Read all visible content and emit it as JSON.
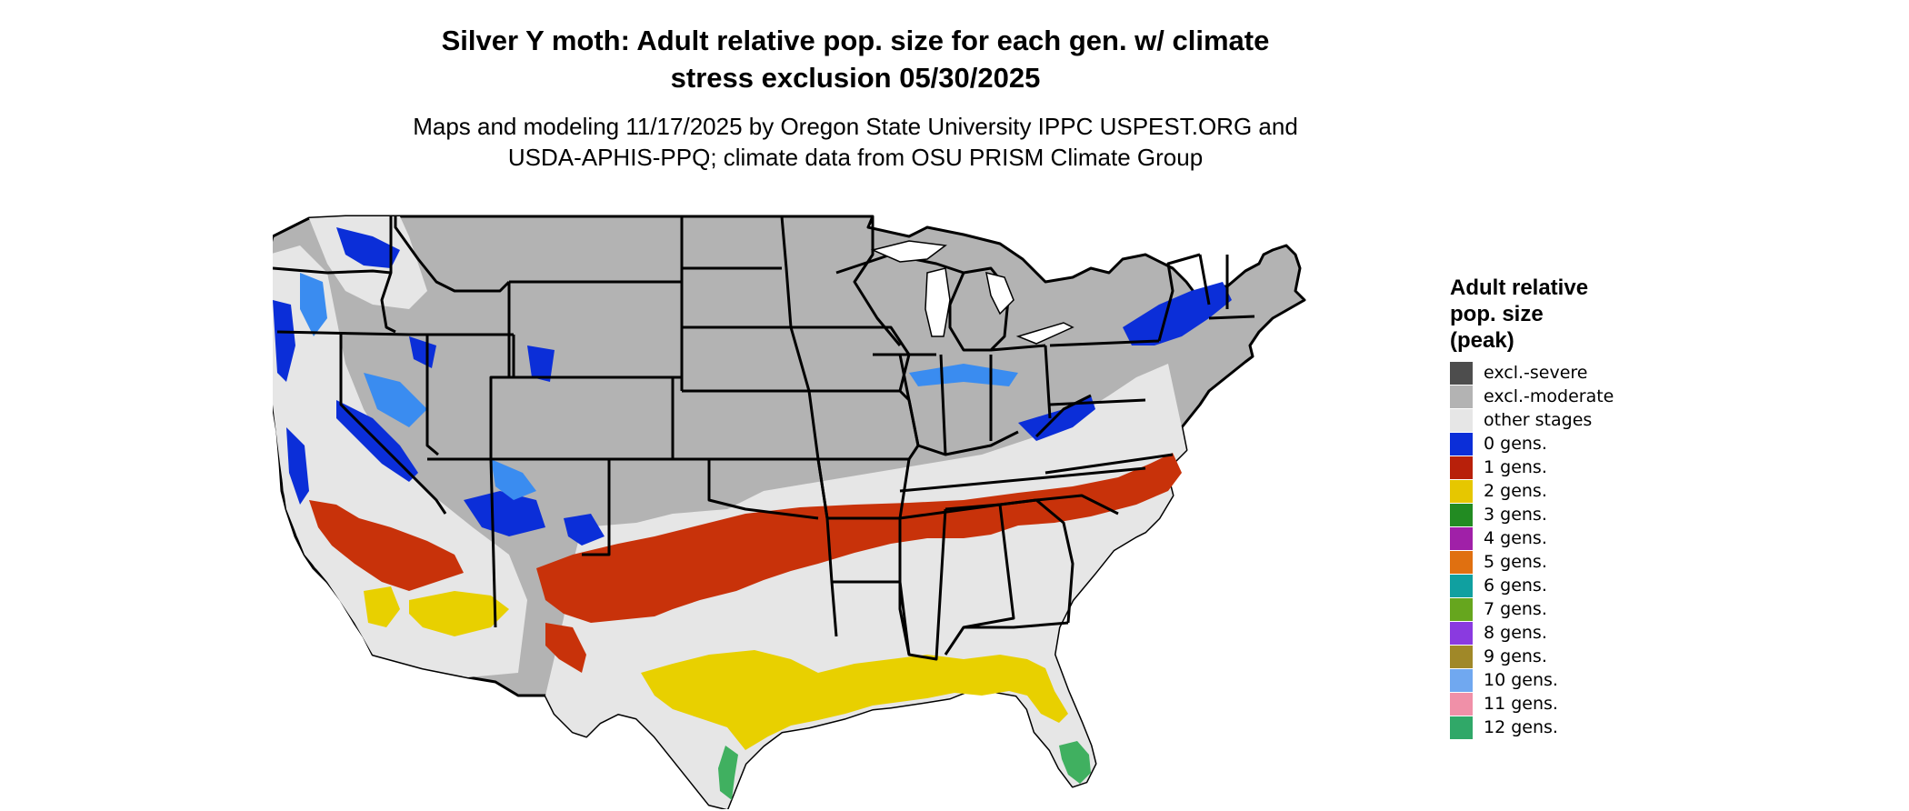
{
  "title": {
    "line1": "Silver Y moth: Adult relative pop. size for each gen. w/ climate",
    "line2": "stress exclusion 05/30/2025"
  },
  "subtitle": {
    "line1": "Maps and modeling 11/17/2025 by Oregon State University IPPC USPEST.ORG and",
    "line2": "USDA-APHIS-PPQ; climate data from OSU PRISM Climate Group"
  },
  "legend": {
    "title_line1": "Adult relative",
    "title_line2": "pop. size",
    "title_line3": "(peak)",
    "items": [
      {
        "label": "excl.-severe",
        "color": "#4d4d4d"
      },
      {
        "label": "excl.-moderate",
        "color": "#b3b3b3"
      },
      {
        "label": "other stages",
        "color": "#e6e6e6"
      },
      {
        "label": "0 gens.",
        "color": "#0b2ed8"
      },
      {
        "label": "1 gens.",
        "color": "#b8200a"
      },
      {
        "label": "2 gens.",
        "color": "#e6c700"
      },
      {
        "label": "3 gens.",
        "color": "#228b22"
      },
      {
        "label": "4 gens.",
        "color": "#a020a8"
      },
      {
        "label": "5 gens.",
        "color": "#e07010"
      },
      {
        "label": "6 gens.",
        "color": "#10a0a0"
      },
      {
        "label": "7 gens.",
        "color": "#66a61e"
      },
      {
        "label": "8 gens.",
        "color": "#8a3ae0"
      },
      {
        "label": "9 gens.",
        "color": "#a08828"
      },
      {
        "label": "10 gens.",
        "color": "#70a8f0"
      },
      {
        "label": "11 gens.",
        "color": "#f090a8"
      },
      {
        "label": "12 gens.",
        "color": "#30a868"
      }
    ]
  },
  "map_colors": {
    "excluded_moderate": "#b3b3b3",
    "other_stages": "#e6e6e6",
    "zero_gens": "#0b2ed8",
    "zero_gens_light": "#3a8cf0",
    "one_gen": "#c8320a",
    "two_gens": "#e8d000",
    "twelve_gens": "#40b060",
    "border": "#000000"
  }
}
